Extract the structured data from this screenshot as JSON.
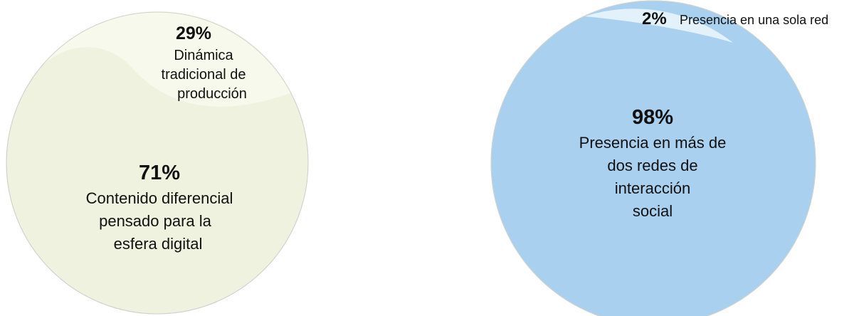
{
  "chart_data": [
    {
      "type": "pie",
      "slices": [
        {
          "value": 71,
          "percent_label": "71%",
          "label_lines": [
            "Contenido diferencial",
            "pensado para la",
            "esfera digital"
          ],
          "color": "#eef2de"
        },
        {
          "value": 29,
          "percent_label": "29%",
          "label_lines": [
            "Dinámica",
            "tradicional de",
            "producción"
          ],
          "color": "#f7f9ec"
        }
      ]
    },
    {
      "type": "pie",
      "slices": [
        {
          "value": 98,
          "percent_label": "98%",
          "label_lines": [
            "Presencia en más de",
            "dos redes de",
            "interacción",
            "social"
          ],
          "color": "#a9d0ef"
        },
        {
          "value": 2,
          "percent_label": "2%",
          "label_lines": [
            "Presencia en una sola red"
          ],
          "color": "#e3f1fb"
        }
      ]
    }
  ],
  "colors": {
    "outline": "#cfd3cf",
    "text": "#111111"
  }
}
